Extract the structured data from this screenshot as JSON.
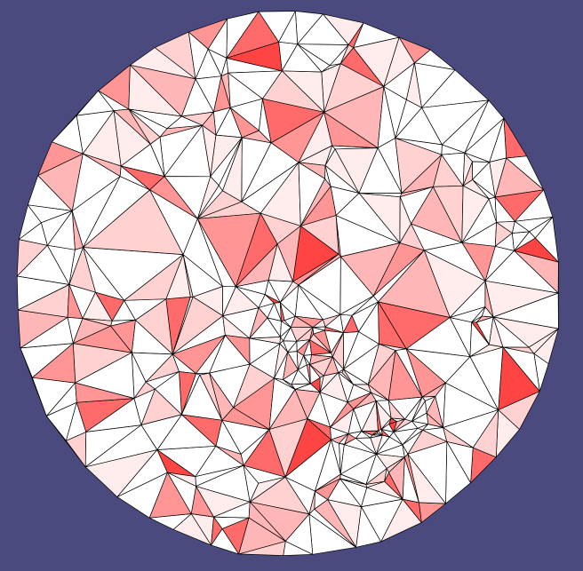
{
  "scene": {
    "background_color": "#4a4a7e",
    "disc_fill": "#ffffff",
    "edge_color": "#000000",
    "highlight_color": "#ff3333",
    "shading_levels": [
      {
        "name": "none",
        "fill": "#ffffff"
      },
      {
        "name": "very-light",
        "fill": "#ffecec"
      },
      {
        "name": "light",
        "fill": "#ffd1d1"
      },
      {
        "name": "medium-light",
        "fill": "#ffb6b6"
      },
      {
        "name": "medium",
        "fill": "#ff9595"
      },
      {
        "name": "strong",
        "fill": "#ff6a6a"
      },
      {
        "name": "very-strong",
        "fill": "#ff4444"
      }
    ]
  }
}
